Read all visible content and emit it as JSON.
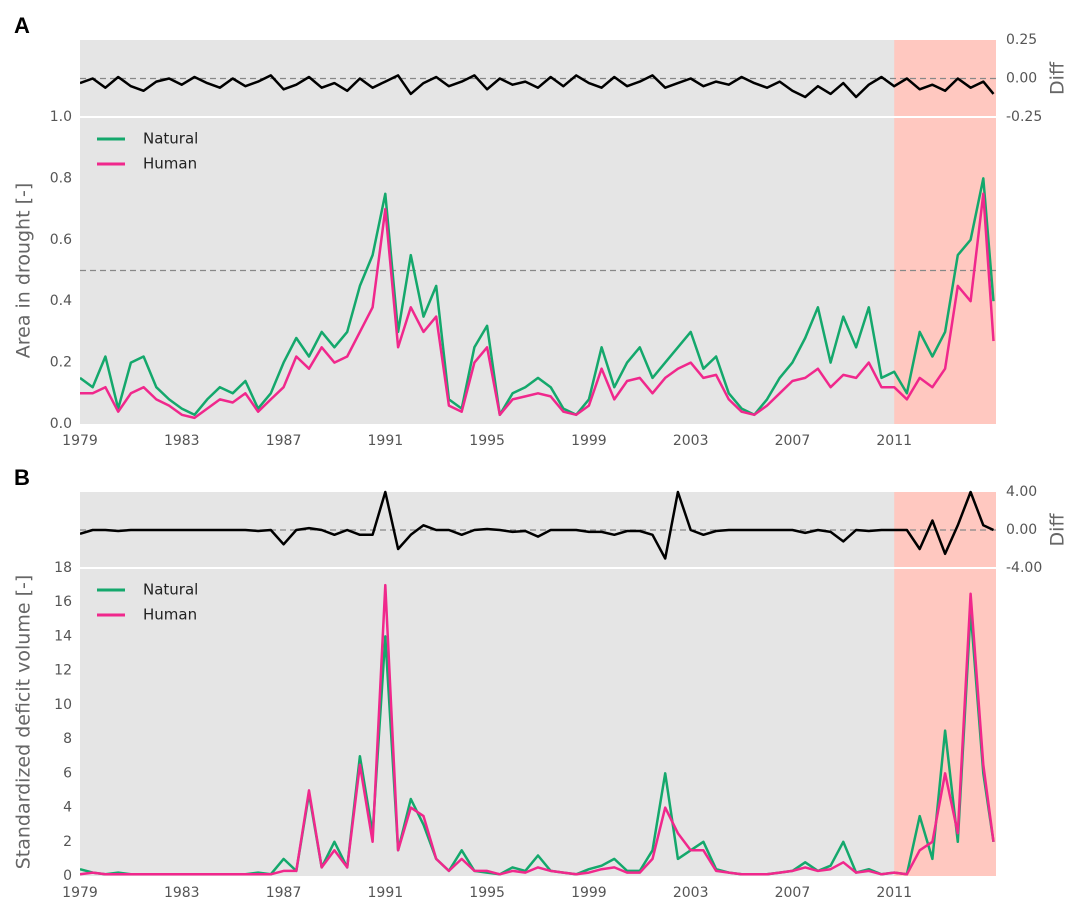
{
  "chart_data": [
    {
      "type": "line",
      "panel": "A",
      "ylabel": "Area in drought [-]",
      "y2label": "Diff",
      "x": [
        1979,
        1979.5,
        1980,
        1980.5,
        1981,
        1981.5,
        1982,
        1982.5,
        1983,
        1983.5,
        1984,
        1984.5,
        1985,
        1985.5,
        1986,
        1986.5,
        1987,
        1987.5,
        1988,
        1988.5,
        1989,
        1989.5,
        1990,
        1990.5,
        1991,
        1991.5,
        1992,
        1992.5,
        1993,
        1993.5,
        1994,
        1994.5,
        1995,
        1995.5,
        1996,
        1996.5,
        1997,
        1997.5,
        1998,
        1998.5,
        1999,
        1999.5,
        2000,
        2000.5,
        2001,
        2001.5,
        2002,
        2002.5,
        2003,
        2003.5,
        2004,
        2004.5,
        2005,
        2005.5,
        2006,
        2006.5,
        2007,
        2007.5,
        2008,
        2008.5,
        2009,
        2009.5,
        2010,
        2010.5,
        2011,
        2011.5,
        2012,
        2012.5,
        2013,
        2013.5,
        2014,
        2014.5,
        2014.9
      ],
      "xlim": [
        1979,
        2015
      ],
      "xticks": [
        1979,
        1983,
        1987,
        1991,
        1995,
        1999,
        2003,
        2007,
        2011
      ],
      "ylim": [
        0,
        1
      ],
      "yticks": [
        {
          "value": 0,
          "label": "0.0"
        },
        0.2,
        0.4,
        0.6,
        0.8,
        {
          "value": 1,
          "label": "1.0"
        }
      ],
      "y2lim": [
        -0.25,
        0.25
      ],
      "y2ticks": [
        {
          "value": -0.25,
          "label": "-0.25"
        },
        {
          "value": 0,
          "label": "0.00"
        },
        {
          "value": 0.25,
          "label": "0.25"
        }
      ],
      "hline": 0.5,
      "y2_hline": 0,
      "shade": [
        2011,
        2015
      ],
      "shade_color": "#ffc8c0",
      "background": "#e5e5e5",
      "legend": "upper left",
      "series": [
        {
          "name": "Natural",
          "color": "#14a86c",
          "values": [
            0.15,
            0.12,
            0.22,
            0.05,
            0.2,
            0.22,
            0.12,
            0.08,
            0.05,
            0.03,
            0.08,
            0.12,
            0.1,
            0.14,
            0.05,
            0.1,
            0.2,
            0.28,
            0.22,
            0.3,
            0.25,
            0.3,
            0.45,
            0.55,
            0.75,
            0.3,
            0.55,
            0.35,
            0.45,
            0.08,
            0.05,
            0.25,
            0.32,
            0.03,
            0.1,
            0.12,
            0.15,
            0.12,
            0.05,
            0.03,
            0.08,
            0.25,
            0.12,
            0.2,
            0.25,
            0.15,
            0.2,
            0.25,
            0.3,
            0.18,
            0.22,
            0.1,
            0.05,
            0.03,
            0.08,
            0.15,
            0.2,
            0.28,
            0.38,
            0.2,
            0.35,
            0.25,
            0.38,
            0.15,
            0.17,
            0.1,
            0.3,
            0.22,
            0.3,
            0.55,
            0.6,
            0.8,
            0.4
          ]
        },
        {
          "name": "Human",
          "color": "#f0288c",
          "values": [
            0.1,
            0.1,
            0.12,
            0.04,
            0.1,
            0.12,
            0.08,
            0.06,
            0.03,
            0.02,
            0.05,
            0.08,
            0.07,
            0.1,
            0.04,
            0.08,
            0.12,
            0.22,
            0.18,
            0.25,
            0.2,
            0.22,
            0.3,
            0.38,
            0.7,
            0.25,
            0.38,
            0.3,
            0.35,
            0.06,
            0.04,
            0.2,
            0.25,
            0.03,
            0.08,
            0.09,
            0.1,
            0.09,
            0.04,
            0.03,
            0.06,
            0.18,
            0.08,
            0.14,
            0.15,
            0.1,
            0.15,
            0.18,
            0.2,
            0.15,
            0.16,
            0.08,
            0.04,
            0.03,
            0.06,
            0.1,
            0.14,
            0.15,
            0.18,
            0.12,
            0.16,
            0.15,
            0.2,
            0.12,
            0.12,
            0.08,
            0.15,
            0.12,
            0.18,
            0.45,
            0.4,
            0.75,
            0.27
          ]
        },
        {
          "color": "#000000",
          "axis": "y2",
          "values": [
            -0.03,
            0.0,
            -0.06,
            0.01,
            -0.05,
            -0.08,
            -0.02,
            0.0,
            -0.04,
            0.01,
            -0.03,
            -0.06,
            0.0,
            -0.05,
            -0.02,
            0.02,
            -0.07,
            -0.04,
            0.01,
            -0.06,
            -0.03,
            -0.08,
            0.0,
            -0.06,
            -0.02,
            0.02,
            -0.1,
            -0.03,
            0.01,
            -0.05,
            -0.02,
            0.02,
            -0.07,
            0.0,
            -0.04,
            -0.02,
            -0.06,
            0.01,
            -0.05,
            0.02,
            -0.03,
            -0.06,
            0.01,
            -0.05,
            -0.02,
            0.02,
            -0.06,
            -0.03,
            0.0,
            -0.05,
            -0.02,
            -0.04,
            0.01,
            -0.03,
            -0.06,
            -0.02,
            -0.08,
            -0.12,
            -0.05,
            -0.1,
            -0.03,
            -0.12,
            -0.04,
            0.01,
            -0.05,
            0.0,
            -0.07,
            -0.04,
            -0.08,
            0.0,
            -0.06,
            -0.02,
            -0.1
          ]
        }
      ]
    },
    {
      "type": "line",
      "panel": "B",
      "ylabel": "Standardized deficit volume [-]",
      "y2label": "Diff",
      "x": [
        1979,
        1979.5,
        1980,
        1980.5,
        1981,
        1981.5,
        1982,
        1982.5,
        1983,
        1983.5,
        1984,
        1984.5,
        1985,
        1985.5,
        1986,
        1986.5,
        1987,
        1987.5,
        1988,
        1988.5,
        1989,
        1989.5,
        1990,
        1990.5,
        1991,
        1991.5,
        1992,
        1992.5,
        1993,
        1993.5,
        1994,
        1994.5,
        1995,
        1995.5,
        1996,
        1996.5,
        1997,
        1997.5,
        1998,
        1998.5,
        1999,
        1999.5,
        2000,
        2000.5,
        2001,
        2001.5,
        2002,
        2002.5,
        2003,
        2003.5,
        2004,
        2004.5,
        2005,
        2005.5,
        2006,
        2006.5,
        2007,
        2007.5,
        2008,
        2008.5,
        2009,
        2009.5,
        2010,
        2010.5,
        2011,
        2011.5,
        2012,
        2012.5,
        2013,
        2013.5,
        2014,
        2014.5,
        2014.9
      ],
      "xlim": [
        1979,
        2015
      ],
      "xticks": [
        1979,
        1983,
        1987,
        1991,
        1995,
        1999,
        2003,
        2007,
        2011
      ],
      "ylim": [
        0,
        18
      ],
      "yticks": [
        0,
        2,
        4,
        6,
        8,
        10,
        12,
        14,
        16,
        18
      ],
      "y2lim": [
        -4,
        4
      ],
      "y2ticks": [
        {
          "value": -4,
          "label": "-4.00"
        },
        {
          "value": 0,
          "label": "0.00"
        },
        {
          "value": 4,
          "label": "4.00"
        }
      ],
      "y2_hline": 0,
      "shade": [
        2011,
        2015
      ],
      "shade_color": "#ffc8c0",
      "background": "#e5e5e5",
      "legend": "upper left",
      "series": [
        {
          "name": "Natural",
          "color": "#14a86c",
          "values": [
            0.4,
            0.2,
            0.1,
            0.2,
            0.1,
            0.1,
            0.1,
            0.1,
            0.1,
            0.1,
            0.1,
            0.1,
            0.1,
            0.1,
            0.2,
            0.1,
            1.0,
            0.3,
            4.8,
            0.5,
            2.0,
            0.5,
            7.0,
            2.5,
            14.0,
            1.5,
            4.5,
            3.0,
            1.0,
            0.3,
            1.5,
            0.3,
            0.2,
            0.1,
            0.5,
            0.3,
            1.2,
            0.3,
            0.2,
            0.1,
            0.4,
            0.6,
            1.0,
            0.3,
            0.3,
            1.5,
            6.0,
            1.0,
            1.5,
            2.0,
            0.4,
            0.2,
            0.1,
            0.1,
            0.1,
            0.2,
            0.3,
            0.8,
            0.3,
            0.6,
            2.0,
            0.2,
            0.4,
            0.1,
            0.2,
            0.1,
            3.5,
            1.0,
            8.5,
            2.0,
            15.5,
            6.0,
            2.0
          ]
        },
        {
          "name": "Human",
          "color": "#f0288c",
          "values": [
            0.1,
            0.2,
            0.1,
            0.1,
            0.1,
            0.1,
            0.1,
            0.1,
            0.1,
            0.1,
            0.1,
            0.1,
            0.1,
            0.1,
            0.1,
            0.1,
            0.3,
            0.3,
            5.0,
            0.5,
            1.5,
            0.5,
            6.5,
            2.0,
            17.0,
            1.5,
            4.0,
            3.5,
            1.0,
            0.3,
            1.0,
            0.3,
            0.3,
            0.1,
            0.3,
            0.2,
            0.5,
            0.3,
            0.2,
            0.1,
            0.2,
            0.4,
            0.5,
            0.2,
            0.2,
            1.0,
            4.0,
            2.5,
            1.5,
            1.5,
            0.3,
            0.2,
            0.1,
            0.1,
            0.1,
            0.2,
            0.3,
            0.5,
            0.3,
            0.4,
            0.8,
            0.2,
            0.3,
            0.1,
            0.2,
            0.1,
            1.5,
            2.0,
            6.0,
            2.5,
            16.5,
            6.5,
            2.0
          ]
        },
        {
          "color": "#000000",
          "axis": "y2",
          "values": [
            -0.4,
            0.0,
            0.0,
            -0.1,
            0.0,
            0.0,
            0.0,
            0.0,
            0.0,
            0.0,
            0.0,
            0.0,
            0.0,
            0.0,
            -0.1,
            0.0,
            -1.5,
            0.0,
            0.2,
            0.0,
            -0.5,
            0.0,
            -0.5,
            -0.5,
            4.0,
            -2.0,
            -0.5,
            0.5,
            0.0,
            0.0,
            -0.5,
            0.0,
            0.1,
            0.0,
            -0.2,
            -0.1,
            -0.7,
            0.0,
            0.0,
            0.0,
            -0.2,
            -0.2,
            -0.5,
            -0.1,
            -0.1,
            -0.5,
            -3.0,
            4.0,
            0.0,
            -0.5,
            -0.1,
            0.0,
            0.0,
            0.0,
            0.0,
            0.0,
            0.0,
            -0.3,
            0.0,
            -0.2,
            -1.2,
            0.0,
            -0.1,
            0.0,
            0.0,
            0.0,
            -2.0,
            1.0,
            -2.5,
            0.5,
            4.0,
            0.5,
            0.0
          ]
        }
      ]
    }
  ]
}
